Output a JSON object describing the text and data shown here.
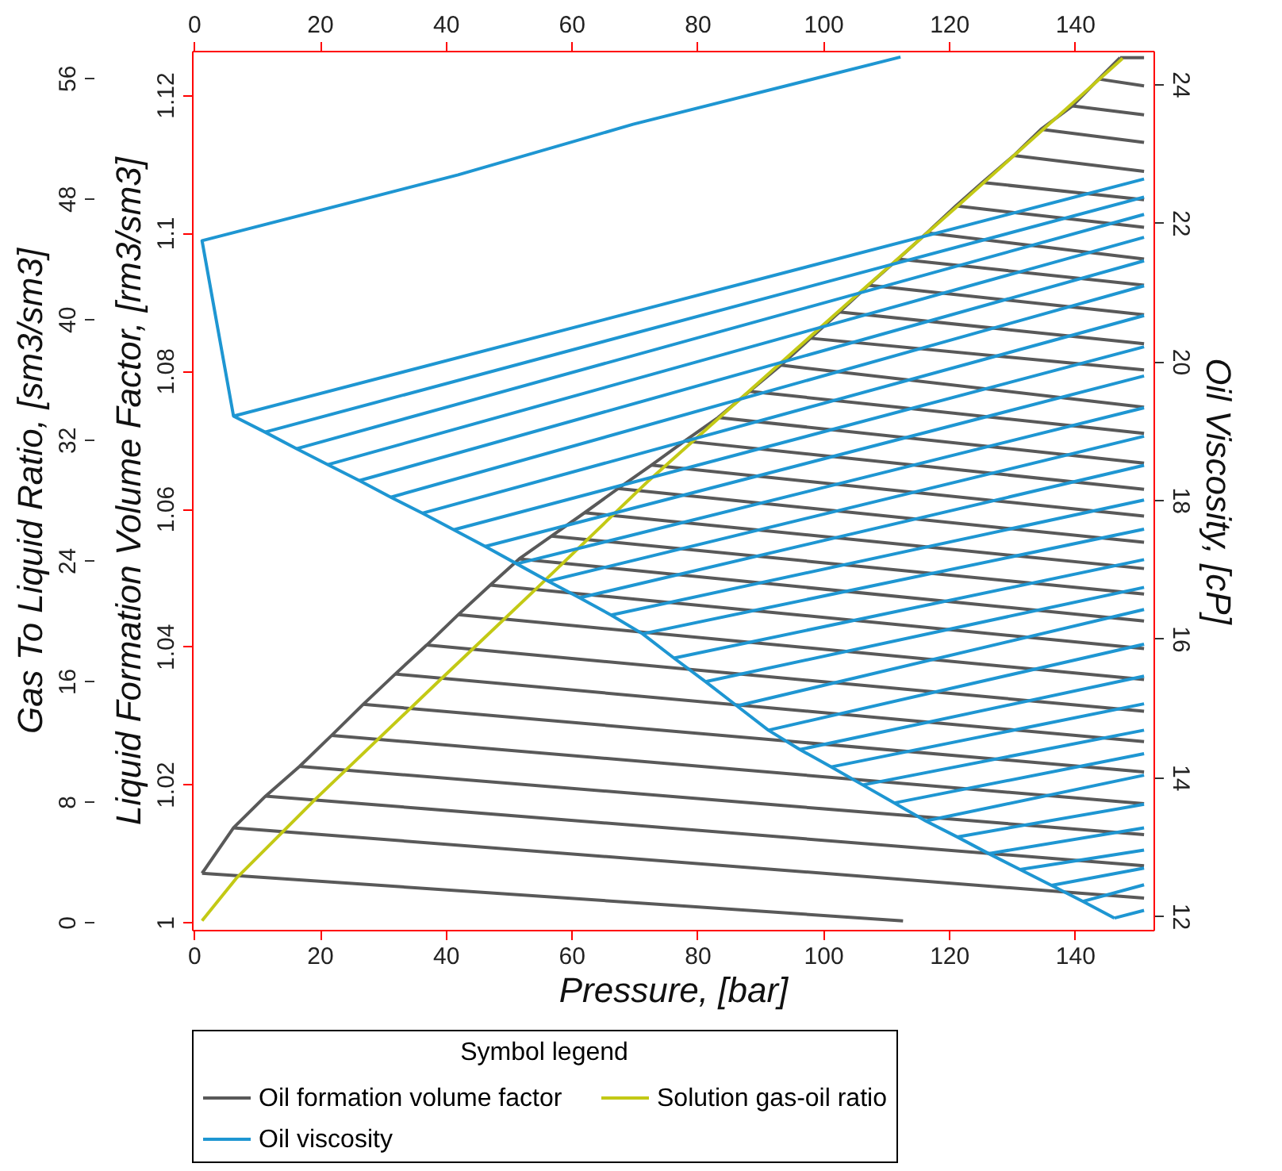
{
  "chart_data": {
    "type": "line",
    "xlabel": "Pressure, [bar]",
    "ylabel": "Liquid Formation Volume Factor, [rm3/sm3]",
    "y2label": "Oil Viscosity, [cP]",
    "y3label": "Gas To Liquid Ratio, [sm3/sm3]",
    "legend_title": "Symbol legend",
    "legend": "bottom",
    "xlim": [
      -0.3,
      152.5
    ],
    "xticks": [
      0,
      20,
      40,
      60,
      80,
      100,
      120,
      140
    ],
    "x2lim": [
      -0.3,
      152.5
    ],
    "x2ticks": [
      0,
      20,
      40,
      60,
      80,
      100,
      120,
      140
    ],
    "ylim": [
      0.9989,
      1.1264
    ],
    "yticks": [
      1,
      1.02,
      1.04,
      1.06,
      1.08,
      1.1,
      1.12
    ],
    "y2lim": [
      11.8,
      24.48
    ],
    "y2ticks": [
      12,
      14,
      16,
      18,
      20,
      22,
      24
    ],
    "y3lim": [
      -0.5,
      57.8
    ],
    "y3ticks": [
      0,
      8,
      16,
      24,
      32,
      40,
      48,
      56
    ],
    "series": [
      {
        "name": "Oil formation volume factor",
        "color": "#595959",
        "x": [
          1.3,
          6.3,
          11.4,
          16.8,
          21.9,
          26.9,
          32.0,
          37.0,
          42.0,
          47.1,
          51.7,
          56.8,
          62.1,
          67.4,
          72.7,
          78.0,
          83.3,
          88.3,
          93.3,
          98.0,
          102.6,
          107.2,
          111.9,
          116.5,
          121.1,
          125.3,
          130.3,
          134.6,
          139.6,
          143.8,
          147.2,
          null,
          1.3,
          112.7,
          null,
          6.3,
          151.0,
          null,
          11.4,
          151.0,
          null,
          16.8,
          151.0,
          null,
          21.9,
          151.0,
          null,
          26.9,
          151.0,
          null,
          32.0,
          151.0,
          null,
          37.0,
          151.0,
          null,
          42.0,
          151.0,
          null,
          47.1,
          151.0,
          null,
          51.7,
          151.0,
          null,
          56.8,
          151.0,
          null,
          62.1,
          151.0,
          null,
          67.4,
          151.0,
          null,
          72.7,
          151.0,
          null,
          78.0,
          151.0,
          null,
          83.3,
          151.0,
          null,
          88.3,
          151.0,
          null,
          93.3,
          151.0,
          null,
          98.0,
          151.0,
          null,
          102.6,
          151.0,
          null,
          107.2,
          151.0,
          null,
          111.9,
          151.0,
          null,
          116.5,
          151.0,
          null,
          121.1,
          151.0,
          null,
          125.3,
          151.0,
          null,
          130.3,
          151.0,
          null,
          134.6,
          151.0,
          null,
          139.6,
          151.0,
          null,
          143.8,
          151.0,
          null,
          147.2,
          151.0
        ],
        "values": [
          1.0071,
          1.0137,
          1.0183,
          1.0226,
          1.0271,
          1.0316,
          1.036,
          1.0402,
          1.0446,
          1.0489,
          1.0527,
          1.056,
          1.0594,
          1.0629,
          1.0663,
          1.0698,
          1.0732,
          1.077,
          1.0808,
          1.0847,
          1.0885,
          1.0924,
          1.0962,
          1.1,
          1.1039,
          1.1073,
          1.1112,
          1.115,
          1.1184,
          1.1223,
          1.1254,
          null,
          1.0071,
          1.0002,
          null,
          1.0137,
          1.0035,
          null,
          1.0183,
          1.0082,
          null,
          1.0226,
          1.0127,
          null,
          1.0271,
          1.0172,
          null,
          1.0316,
          1.0218,
          null,
          1.036,
          1.0262,
          null,
          1.0402,
          1.0306,
          null,
          1.0446,
          1.0352,
          null,
          1.0489,
          1.0397,
          null,
          1.0527,
          1.0437,
          null,
          1.056,
          1.0476,
          null,
          1.0594,
          1.0513,
          null,
          1.0629,
          1.0551,
          null,
          1.0663,
          1.0589,
          null,
          1.0698,
          1.0628,
          null,
          1.0732,
          1.0666,
          null,
          1.077,
          1.0709,
          null,
          1.0808,
          1.0747,
          null,
          1.0847,
          1.0801,
          null,
          1.0885,
          1.0839,
          null,
          1.0924,
          1.0881,
          null,
          1.0962,
          1.0924,
          null,
          1.1,
          1.0962,
          null,
          1.1039,
          1.1008,
          null,
          1.1073,
          1.1048,
          null,
          1.1112,
          1.1089,
          null,
          1.115,
          1.1131,
          null,
          1.1184,
          1.1171,
          null,
          1.1223,
          1.1213,
          null,
          1.1254,
          1.1254
        ]
      },
      {
        "name": "Solution gas-oil ratio",
        "color": "#c3c915",
        "axis": "y3",
        "x": [
          1.3,
          6.7,
          19.4,
          38.7,
          54.6,
          72.3,
          105.9,
          120.3,
          147.6
        ],
        "values": [
          0.1,
          2.9,
          8.2,
          15.9,
          22.2,
          29.3,
          41.8,
          47.1,
          57.3
        ]
      },
      {
        "name": "Oil viscosity",
        "color": "#1e96d2",
        "axis": "y2",
        "x": [
          112.3,
          69.8,
          42.0,
          1.3,
          6.3,
          11.3,
          16.3,
          21.3,
          26.3,
          31.3,
          36.3,
          41.3,
          46.3,
          51.3,
          56.3,
          61.3,
          66.3,
          71.3,
          76.3,
          81.3,
          86.3,
          91.3,
          96.3,
          101.3,
          106.3,
          111.3,
          116.3,
          121.3,
          126.3,
          131.3,
          136.3,
          141.3,
          146.3,
          null,
          6.3,
          151.0,
          null,
          11.3,
          151.0,
          null,
          16.3,
          151.0,
          null,
          21.3,
          151.0,
          null,
          26.3,
          151.0,
          null,
          31.3,
          151.0,
          null,
          36.3,
          151.0,
          null,
          41.3,
          151.0,
          null,
          46.3,
          151.0,
          null,
          51.3,
          151.0,
          null,
          56.3,
          151.0,
          null,
          61.3,
          151.0,
          null,
          66.3,
          151.0,
          null,
          71.3,
          151.0,
          null,
          76.3,
          151.0,
          null,
          81.3,
          151.0,
          null,
          86.3,
          151.0,
          null,
          91.3,
          151.0,
          null,
          96.3,
          151.0,
          null,
          101.3,
          151.0,
          null,
          106.3,
          151.0,
          null,
          111.3,
          151.0,
          null,
          116.3,
          151.0,
          null,
          121.3,
          151.0,
          null,
          126.3,
          151.0,
          null,
          131.3,
          151.0,
          null,
          136.3,
          151.0,
          null,
          141.3,
          151.0,
          null,
          146.3,
          151.0
        ],
        "values": [
          24.39,
          23.42,
          22.69,
          21.74,
          19.21,
          18.98,
          18.74,
          18.51,
          18.28,
          18.04,
          17.81,
          17.57,
          17.33,
          17.08,
          16.83,
          16.59,
          16.34,
          16.07,
          15.72,
          15.38,
          15.03,
          14.68,
          14.4,
          14.15,
          13.89,
          13.63,
          13.37,
          13.14,
          12.9,
          12.67,
          12.44,
          12.21,
          11.97,
          null,
          19.21,
          22.63,
          null,
          18.98,
          22.37,
          null,
          18.74,
          22.12,
          null,
          18.51,
          21.79,
          null,
          18.28,
          21.45,
          null,
          18.04,
          21.09,
          null,
          17.81,
          20.66,
          null,
          17.57,
          20.21,
          null,
          17.33,
          19.79,
          null,
          17.08,
          19.33,
          null,
          16.83,
          18.92,
          null,
          16.59,
          18.5,
          null,
          16.34,
          18.0,
          null,
          16.07,
          17.58,
          null,
          15.72,
          17.14,
          null,
          15.38,
          16.74,
          null,
          15.03,
          16.42,
          null,
          14.68,
          15.92,
          null,
          14.4,
          15.46,
          null,
          14.15,
          15.06,
          null,
          13.89,
          14.68,
          null,
          13.63,
          14.34,
          null,
          13.37,
          14.03,
          null,
          13.14,
          13.61,
          null,
          12.9,
          13.27,
          null,
          12.67,
          12.95,
          null,
          12.44,
          12.69,
          null,
          12.21,
          12.45,
          null,
          11.97,
          12.08
        ]
      }
    ]
  }
}
